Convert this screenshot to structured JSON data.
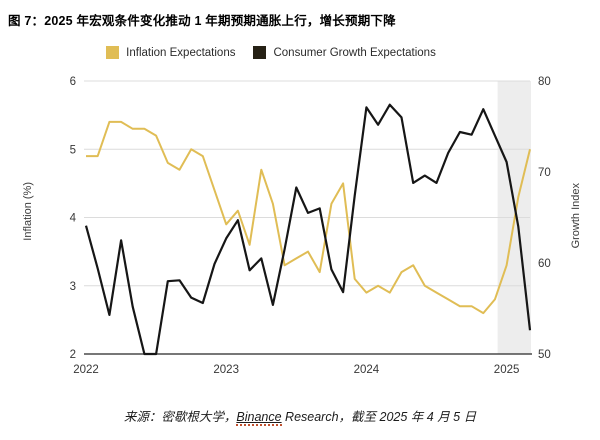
{
  "title": "图 7：2025 年宏观条件变化推动 1 年期预期通胀上行，增长预期下降",
  "legend": [
    {
      "label": "Inflation Expectations",
      "color": "#E0BD55"
    },
    {
      "label": "Consumer Growth Expectations",
      "color": "#262115"
    }
  ],
  "source": {
    "prefix": "来源：密歇根大学，",
    "binance": "Binance",
    "rest": " Research，截至 2025 年 4 月 5 日"
  },
  "chart_data": {
    "type": "line",
    "title": "图 7：2025 年宏观条件变化推动 1 年期预期通胀上行，增长预期下降",
    "x": [
      "2022-01",
      "2022-02",
      "2022-03",
      "2022-04",
      "2022-05",
      "2022-06",
      "2022-07",
      "2022-08",
      "2022-09",
      "2022-10",
      "2022-11",
      "2022-12",
      "2023-01",
      "2023-02",
      "2023-03",
      "2023-04",
      "2023-05",
      "2023-06",
      "2023-07",
      "2023-08",
      "2023-09",
      "2023-10",
      "2023-11",
      "2023-12",
      "2024-01",
      "2024-02",
      "2024-03",
      "2024-04",
      "2024-05",
      "2024-06",
      "2024-07",
      "2024-08",
      "2024-09",
      "2024-10",
      "2024-11",
      "2024-12",
      "2025-01",
      "2025-02",
      "2025-03"
    ],
    "series": [
      {
        "id": "inflation",
        "name": "Inflation Expectations",
        "axis": "left",
        "color": "#E0BD55",
        "values": [
          4.9,
          4.9,
          5.4,
          5.4,
          5.3,
          5.3,
          5.2,
          4.8,
          4.7,
          5.0,
          4.9,
          4.4,
          3.9,
          4.1,
          3.6,
          4.7,
          4.2,
          3.3,
          3.4,
          3.5,
          3.2,
          4.2,
          4.5,
          3.1,
          2.9,
          3.0,
          2.9,
          3.2,
          3.3,
          3.0,
          2.9,
          2.8,
          2.7,
          2.7,
          2.6,
          2.8,
          3.3,
          4.3,
          5.0
        ]
      },
      {
        "id": "growth",
        "name": "Consumer Growth Expectations",
        "axis": "right",
        "color": "#161616",
        "values": [
          64.1,
          59.4,
          54.3,
          62.5,
          55.2,
          47.5,
          47.3,
          58.0,
          58.1,
          56.2,
          55.6,
          59.9,
          62.7,
          64.7,
          59.2,
          60.5,
          55.4,
          61.5,
          68.3,
          65.5,
          66.0,
          59.3,
          56.8,
          67.4,
          77.1,
          75.2,
          77.4,
          76.0,
          68.8,
          69.6,
          68.8,
          72.1,
          74.4,
          74.1,
          76.9,
          74.0,
          71.1,
          64.0,
          52.6
        ]
      }
    ],
    "y_axis_left": {
      "title": "Inflation (%)",
      "min": 2,
      "max": 6,
      "ticks": [
        "6",
        "5",
        "4",
        "3",
        "2"
      ],
      "gridlines": [
        6,
        5,
        4,
        3
      ]
    },
    "y_axis_right": {
      "title": "Growth Index",
      "min": 50,
      "max": 80,
      "ticks": [
        "80",
        "70",
        "60",
        "50"
      ]
    },
    "x_axis": {
      "ticks": [
        "2022",
        "2023",
        "2024",
        "2025"
      ],
      "tick_month_indices": [
        0,
        12,
        24,
        36
      ]
    },
    "highlight": {
      "from": "2025-01",
      "color": "#EDEDED"
    },
    "colors": {
      "grid": "#DCDCDC",
      "axis": "#4A4A4A",
      "background": "#FFFFFF"
    },
    "legend_position": "top-center",
    "grid": true
  }
}
